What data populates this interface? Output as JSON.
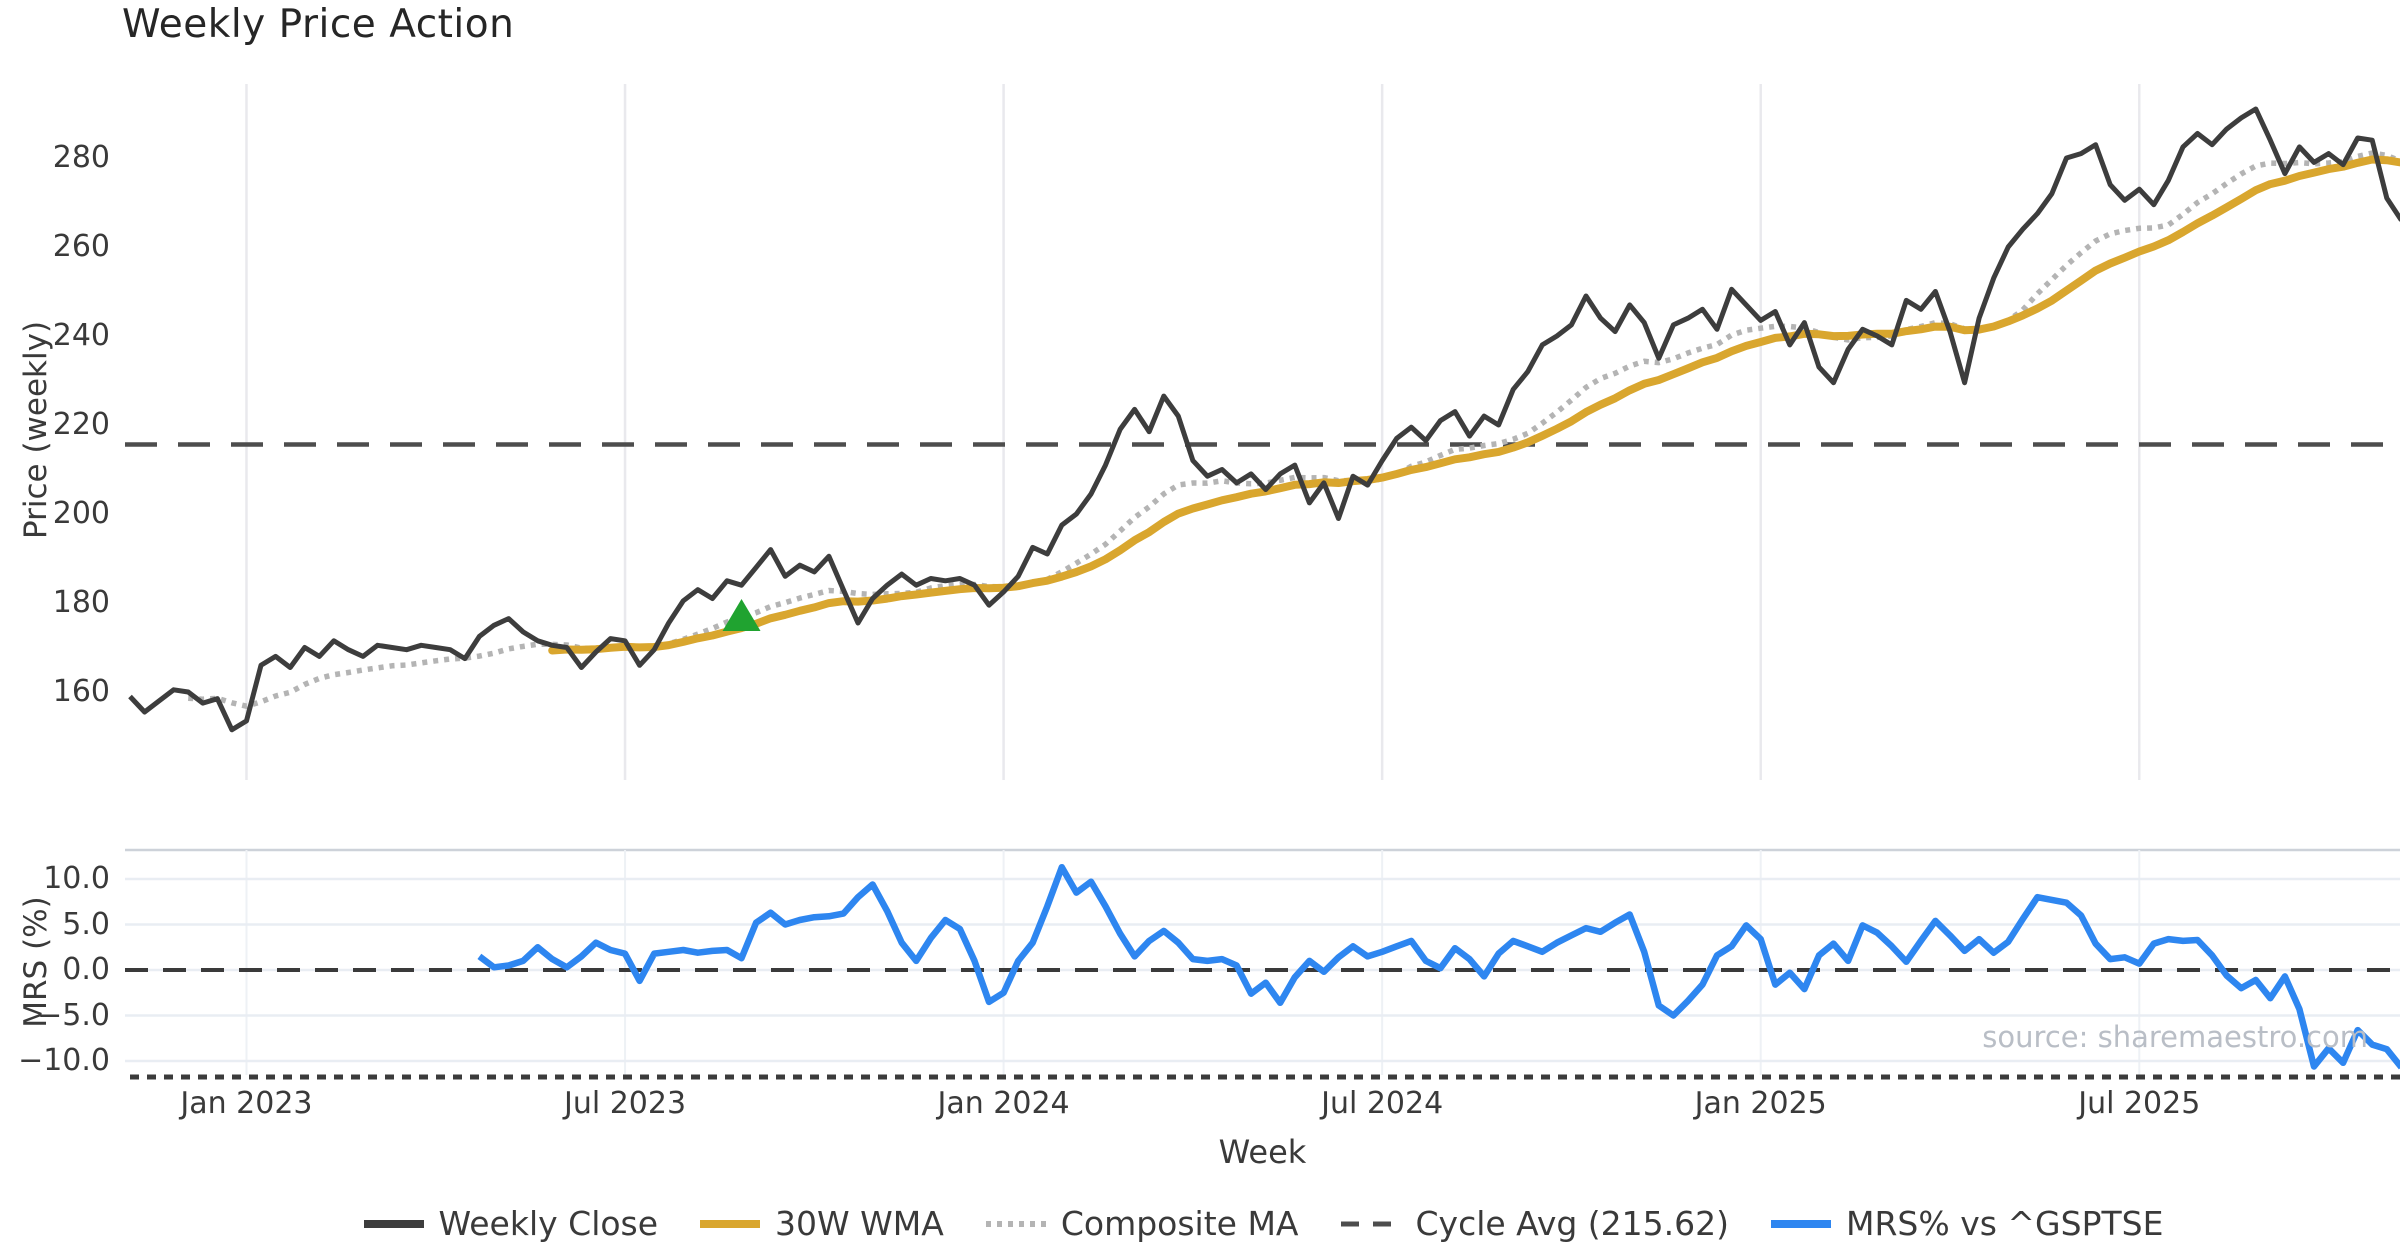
{
  "header": {
    "title": "Weekly Price Action"
  },
  "source_note": "source: sharemaestro.com",
  "axes": {
    "x_label": "Week",
    "x_ticks": [
      {
        "week": 8,
        "label": "Jan 2023"
      },
      {
        "week": 34,
        "label": "Jul 2023"
      },
      {
        "week": 60,
        "label": "Jan 2024"
      },
      {
        "week": 86,
        "label": "Jul 2024"
      },
      {
        "week": 112,
        "label": "Jan 2025"
      },
      {
        "week": 138,
        "label": "Jul 2025"
      }
    ],
    "price_axis": {
      "label": "Price (weekly)",
      "ticks": [
        280,
        260,
        240,
        220,
        200,
        180,
        160
      ]
    },
    "mrs_axis": {
      "label": "MRS (%)",
      "ticks": [
        "10.0",
        "5.0",
        "0.0",
        "−5.0",
        "−10.0"
      ],
      "tick_values": [
        10,
        5,
        0,
        -5,
        -10
      ]
    }
  },
  "legend": [
    {
      "label": "Weekly Close",
      "swatch": "solid",
      "color": "#3d3d3d"
    },
    {
      "label": "30W WMA",
      "swatch": "solid",
      "color": "#d9a62e"
    },
    {
      "label": "Composite MA",
      "swatch": "dotted",
      "color": "#b4b4b4"
    },
    {
      "label": "Cycle Avg (215.62)",
      "swatch": "dashed",
      "color": "#4d4d4d"
    },
    {
      "label": "MRS% vs ^GSPTSE",
      "swatch": "solid",
      "color": "#2e86f0"
    }
  ],
  "colors": {
    "weekly_close": "#3d3d3d",
    "wma": "#d9a62e",
    "composite": "#b4b4b4",
    "cycle_avg": "#4d4d4d",
    "mrs": "#2e86f0",
    "signal_green": "#20a330",
    "grid_vertical": "#e9e9ed",
    "grid_horizontal": "#e9edf3",
    "panel_border": "#cdd2d9",
    "tick_marks": "#3b3b3b",
    "source_text": "#b9bec6"
  },
  "chart_data": [
    {
      "type": "line",
      "panel": "price",
      "title": "Weekly Price Action",
      "xlabel": "Week",
      "ylabel": "Price (weekly)",
      "x_unit": "week_index",
      "x_tick_map": {
        "8": "Jan 2023",
        "34": "Jul 2023",
        "60": "Jan 2024",
        "86": "Jul 2024",
        "112": "Jan 2025",
        "138": "Jul 2025"
      },
      "ylim": [
        141,
        297
      ],
      "grid": "vertical-only",
      "legend_position": "bottom-center",
      "series": [
        {
          "name": "Weekly Close",
          "style": "solid",
          "color": "#3d3d3d",
          "start_week": 0,
          "values": [
            159,
            155.5,
            158,
            160.5,
            160,
            157.5,
            158.5,
            151.5,
            153.5,
            166,
            168,
            165.5,
            170,
            168,
            171.5,
            169.5,
            168,
            170.5,
            170,
            169.5,
            170.5,
            170,
            169.5,
            167.5,
            172.5,
            175,
            176.5,
            173.5,
            171.5,
            170.5,
            170,
            165.5,
            169,
            172,
            171.5,
            166,
            169.5,
            175.5,
            180.5,
            183,
            181,
            185,
            184,
            188,
            192,
            186,
            188.5,
            187,
            190.5,
            183,
            175.5,
            181,
            184,
            186.5,
            184,
            185.5,
            185,
            185.5,
            184,
            179.5,
            182.5,
            186,
            192.5,
            191,
            197.5,
            200,
            204.5,
            211,
            219,
            223.5,
            218.5,
            226.5,
            222,
            212,
            208.5,
            210,
            207,
            209,
            205.5,
            209,
            211,
            202.5,
            207,
            199,
            208.5,
            206.5,
            212,
            217,
            219.5,
            216.5,
            221,
            223,
            217.5,
            222,
            220,
            228,
            232,
            238,
            240,
            242.5,
            249,
            244,
            241,
            247,
            243,
            235,
            242.5,
            244,
            246,
            241.5,
            250.5,
            247,
            243.5,
            245.5,
            238,
            243,
            233,
            229.5,
            237,
            241.5,
            240,
            238,
            248,
            246,
            250,
            241,
            229.5,
            244,
            253,
            260,
            264,
            267.5,
            272,
            280,
            281,
            283,
            274,
            270.5,
            273,
            269.5,
            275,
            282.5,
            285.5,
            283,
            286.5,
            289,
            291,
            284,
            276.5,
            282.5,
            279,
            281,
            278.5,
            284.5,
            284,
            271,
            266
          ]
        },
        {
          "name": "30W WMA",
          "style": "solid",
          "color": "#d9a62e",
          "derived_from": "Weekly Close",
          "derivation": "30-week linearly-weighted moving average, plotted from week 29"
        },
        {
          "name": "Composite MA",
          "style": "dotted",
          "color": "#b4b4b4",
          "derived_from": "Weekly Close",
          "derivation": "mean of 5/15/25-week simple moving averages, plotted from week 4"
        },
        {
          "name": "Cycle Avg (215.62)",
          "style": "dashed",
          "color": "#4d4d4d",
          "constant_value": 215.62
        }
      ],
      "signal_marker": {
        "shape": "triangle-up",
        "color": "#20a330",
        "week": 42,
        "price": 177.3
      }
    },
    {
      "type": "line",
      "panel": "mrs",
      "ylabel": "MRS (%)",
      "x_unit": "week_index",
      "ylim": [
        -11.5,
        13.2
      ],
      "yticks": [
        10,
        5,
        0,
        -5,
        -10
      ],
      "zero_line": "dashed",
      "grid": "horizontal",
      "series": [
        {
          "name": "MRS% vs ^GSPTSE",
          "style": "solid",
          "color": "#2e86f0",
          "start_week": 24,
          "values": [
            1.5,
            0.3,
            0.5,
            1.0,
            2.5,
            1.2,
            0.3,
            1.5,
            3.0,
            2.2,
            1.8,
            -1.2,
            1.8,
            2.0,
            2.2,
            1.9,
            2.1,
            2.2,
            1.3,
            5.2,
            6.3,
            5.0,
            5.5,
            5.8,
            5.9,
            6.2,
            8.0,
            9.4,
            6.5,
            3.0,
            1.0,
            3.5,
            5.5,
            4.5,
            1.0,
            -3.5,
            -2.5,
            1.0,
            3.0,
            7.0,
            11.3,
            8.5,
            9.7,
            7.0,
            4.0,
            1.5,
            3.2,
            4.3,
            3.0,
            1.2,
            1.0,
            1.2,
            0.5,
            -2.6,
            -1.4,
            -3.6,
            -0.8,
            1.0,
            -0.2,
            1.4,
            2.6,
            1.5,
            2.0,
            2.6,
            3.2,
            1.0,
            0.2,
            2.4,
            1.2,
            -0.7,
            1.8,
            3.2,
            2.6,
            2.0,
            3.0,
            3.8,
            4.6,
            4.2,
            5.2,
            6.1,
            2.0,
            -3.9,
            -5.0,
            -3.4,
            -1.6,
            1.6,
            2.6,
            4.9,
            3.4,
            -1.6,
            -0.3,
            -2.1,
            1.6,
            2.9,
            1.0,
            4.9,
            4.1,
            2.6,
            0.9,
            3.2,
            5.4,
            3.8,
            2.1,
            3.4,
            1.9,
            3.1,
            5.6,
            8.0,
            7.7,
            7.4,
            6.0,
            2.9,
            1.2,
            1.4,
            0.7,
            2.9,
            3.4,
            3.2,
            3.3,
            1.6,
            -0.6,
            -2.0,
            -1.1,
            -3.1,
            -0.7,
            -4.3,
            -10.6,
            -8.6,
            -10.2,
            -6.6,
            -8.2,
            -8.7,
            -10.7
          ]
        }
      ]
    }
  ]
}
